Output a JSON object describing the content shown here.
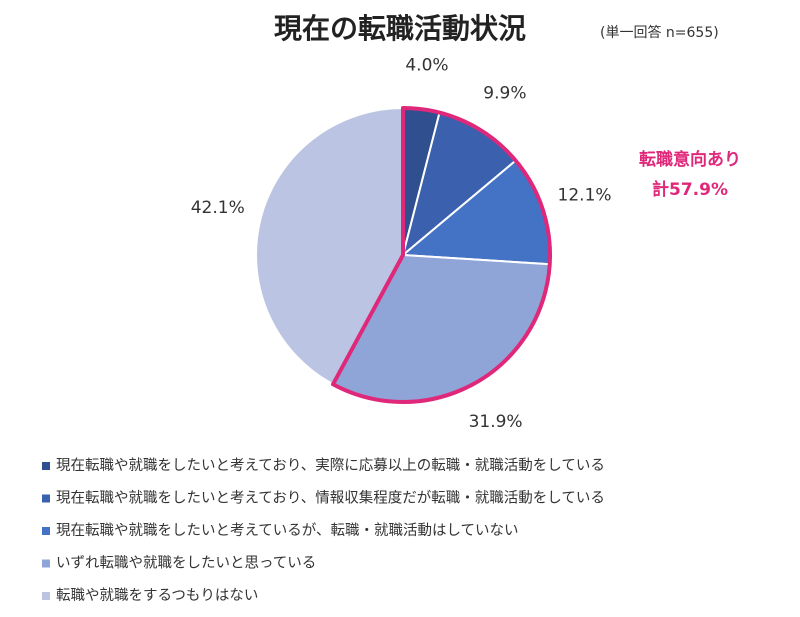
{
  "chart_data": {
    "type": "pie",
    "title": "現在の転職活動状況",
    "subtitle": "(単一回答 n=655)",
    "categories": [
      "現在転職や就職をしたいと考えており、実際に応募以上の転職・就職活動をしている",
      "現在転職や就職をしたいと考えており、情報収集程度だが転職・就職活動をしている",
      "現在転職や就職をしたいと考えているが、転職・就職活動はしていない",
      "いずれ転職や就職をしたいと思っている",
      "転職や就職をするつもりはない"
    ],
    "values": [
      4,
      9.9,
      12.1,
      31.9,
      42.1
    ],
    "value_labels": [
      "4.0%",
      "9.9%",
      "12.1%",
      "31.9%",
      "42.1%"
    ],
    "colors": [
      "#2f4f8f",
      "#3b60ad",
      "#4472c4",
      "#8fa5d7",
      "#bbc5e3"
    ],
    "annotation": [
      "転職意向あり",
      "計57.9%"
    ],
    "highlight_color": "#e0287a",
    "legend": "bottom"
  }
}
